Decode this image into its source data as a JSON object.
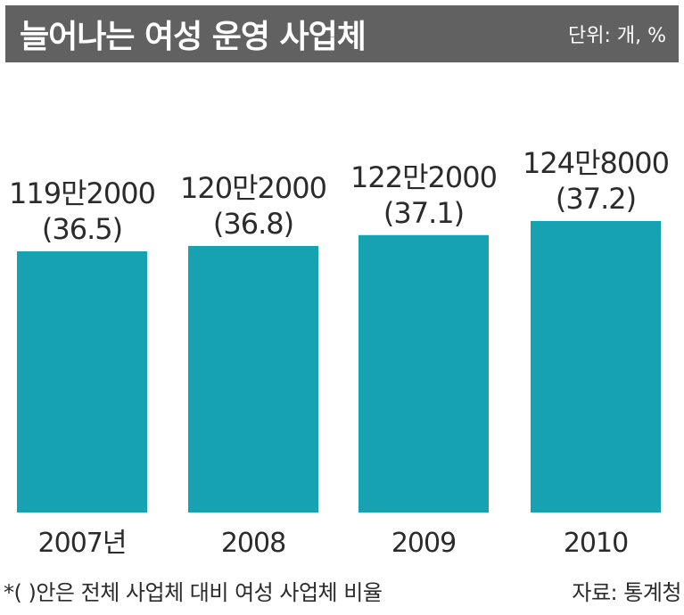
{
  "header": {
    "title": "늘어나는 여성 운영 사업체",
    "unit": "단위: 개, %"
  },
  "footnote": {
    "note": "*(  )안은 전체 사업체 대비 여성 사업체 비율",
    "source": "자료: 통계청"
  },
  "colors": {
    "bar": "#17a2b2",
    "header_bg": "#616161"
  },
  "chart_data": {
    "type": "bar",
    "categories": [
      "2007년",
      "2008",
      "2009",
      "2010"
    ],
    "values": [
      1192000,
      1202000,
      1222000,
      1248000
    ],
    "value_labels": [
      "119만2000",
      "120만2000",
      "122만2000",
      "124만8000"
    ],
    "ratios": [
      36.5,
      36.8,
      37.1,
      37.2
    ],
    "ratio_labels": [
      "(36.5)",
      "(36.8)",
      "(37.1)",
      "(37.2)"
    ],
    "title": "늘어나는 여성 운영 사업체",
    "xlabel": "",
    "ylabel": ""
  }
}
